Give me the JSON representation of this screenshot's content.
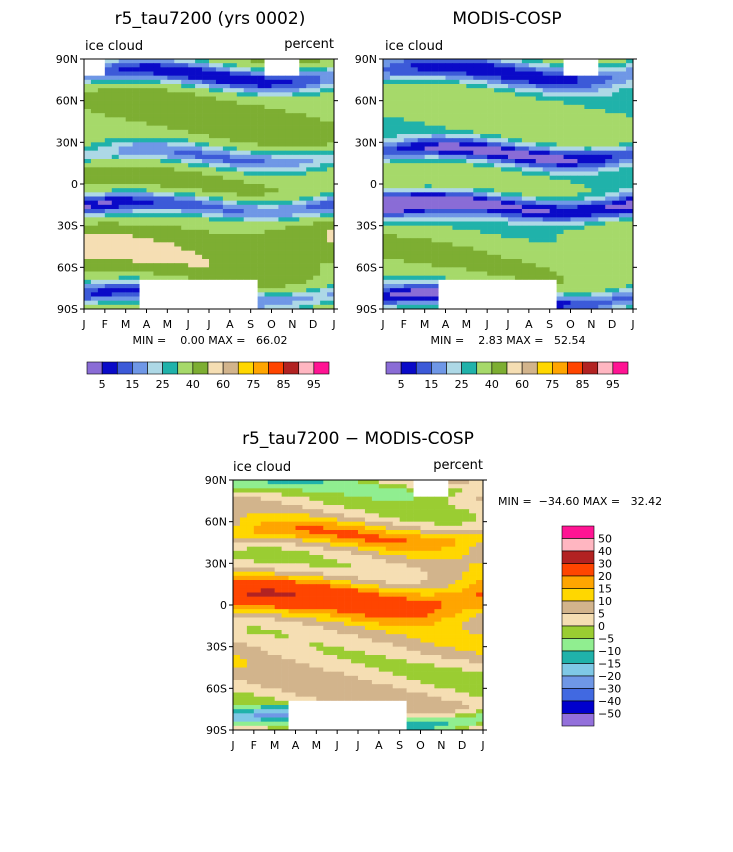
{
  "colors": {
    "abs_scale": [
      "#8a6cd6",
      "#0a0ac8",
      "#3c5ad8",
      "#6f97e6",
      "#add8e6",
      "#20b2aa",
      "#a6d96a",
      "#7dae32",
      "#f5deb3",
      "#d2b48c",
      "#ffd700",
      "#ffa500",
      "#ff4500",
      "#b22222",
      "#ffb6c1",
      "#ff1493"
    ],
    "diff_scale": [
      "#9370db",
      "#0000cd",
      "#4169e1",
      "#6f97e6",
      "#7fc8e6",
      "#20b2aa",
      "#90ee90",
      "#9acd32",
      "#f5deb3",
      "#d2b48c",
      "#ffd700",
      "#ffa500",
      "#ff4500",
      "#b22222",
      "#ffb6c1",
      "#ff1493"
    ],
    "missing": "#ffffff"
  },
  "chart_data": [
    {
      "type": "heatmap",
      "title": "r5_tau7200 (yrs 0002)",
      "left_label": "ice cloud",
      "right_label": "percent",
      "x_ticks": [
        "J",
        "F",
        "M",
        "A",
        "M",
        "J",
        "J",
        "A",
        "S",
        "O",
        "N",
        "D",
        "J"
      ],
      "y_ticks": [
        "90N",
        "60N",
        "30N",
        "0",
        "30S",
        "60S",
        "90S"
      ],
      "ylim": [
        -90,
        90
      ],
      "stats_text": "MIN =    0.00 MAX =   66.02",
      "min": 0.0,
      "max": 66.02,
      "colorbar_labels": [
        "5",
        "15",
        "25",
        "40",
        "60",
        "75",
        "85",
        "95"
      ],
      "features": [
        {
          "lat": 78,
          "amp": -30,
          "width": 10
        },
        {
          "lat": 20,
          "amp": -22,
          "width": 9
        },
        {
          "lat": -16,
          "amp": -32,
          "width": 9
        },
        {
          "lat": -45,
          "amp": 8,
          "width": 14
        },
        {
          "lat": -80,
          "amp": -28,
          "width": 9
        }
      ],
      "base": 42
    },
    {
      "type": "heatmap",
      "title": "MODIS-COSP",
      "left_label": "ice cloud",
      "right_label": "",
      "x_ticks": [
        "J",
        "F",
        "M",
        "A",
        "M",
        "J",
        "J",
        "A",
        "S",
        "O",
        "N",
        "D",
        "J"
      ],
      "y_ticks": [
        "90N",
        "60N",
        "30N",
        "0",
        "30S",
        "60S",
        "90S"
      ],
      "ylim": [
        -90,
        90
      ],
      "stats_text": "MIN =    2.83 MAX =   52.54",
      "min": 2.83,
      "max": 52.54,
      "colorbar_labels": [
        "5",
        "15",
        "25",
        "40",
        "60",
        "75",
        "85",
        "95"
      ],
      "features": [
        {
          "lat": 80,
          "amp": -22,
          "width": 10
        },
        {
          "lat": 22,
          "amp": -26,
          "width": 8
        },
        {
          "lat": -16,
          "amp": -34,
          "width": 9
        },
        {
          "lat": -50,
          "amp": 4,
          "width": 14
        },
        {
          "lat": -82,
          "amp": -26,
          "width": 8
        }
      ],
      "base": 34
    },
    {
      "type": "heatmap",
      "title": "r5_tau7200 − MODIS-COSP",
      "left_label": "ice cloud",
      "right_label": "percent",
      "x_ticks": [
        "J",
        "F",
        "M",
        "A",
        "M",
        "J",
        "J",
        "A",
        "S",
        "O",
        "N",
        "D",
        "J"
      ],
      "y_ticks": [
        "90N",
        "60N",
        "30N",
        "0",
        "30S",
        "60S",
        "90S"
      ],
      "ylim": [
        -90,
        90
      ],
      "stats_text": "MIN =  −34.60 MAX =   32.42",
      "min": -34.6,
      "max": 32.42,
      "colorbar_labels": [
        "50",
        "40",
        "30",
        "20",
        "15",
        "10",
        "5",
        "0",
        "−5",
        "−10",
        "−15",
        "−20",
        "−30",
        "−40",
        "−50"
      ],
      "features": [
        {
          "lat": 5,
          "amp": 22,
          "width": 14
        },
        {
          "lat": 50,
          "amp": 12,
          "width": 9
        },
        {
          "lat": -30,
          "amp": 3,
          "width": 14
        },
        {
          "lat": 85,
          "amp": -8,
          "width": 6
        },
        {
          "lat": -82,
          "amp": -18,
          "width": 6
        }
      ],
      "base": 3
    }
  ]
}
